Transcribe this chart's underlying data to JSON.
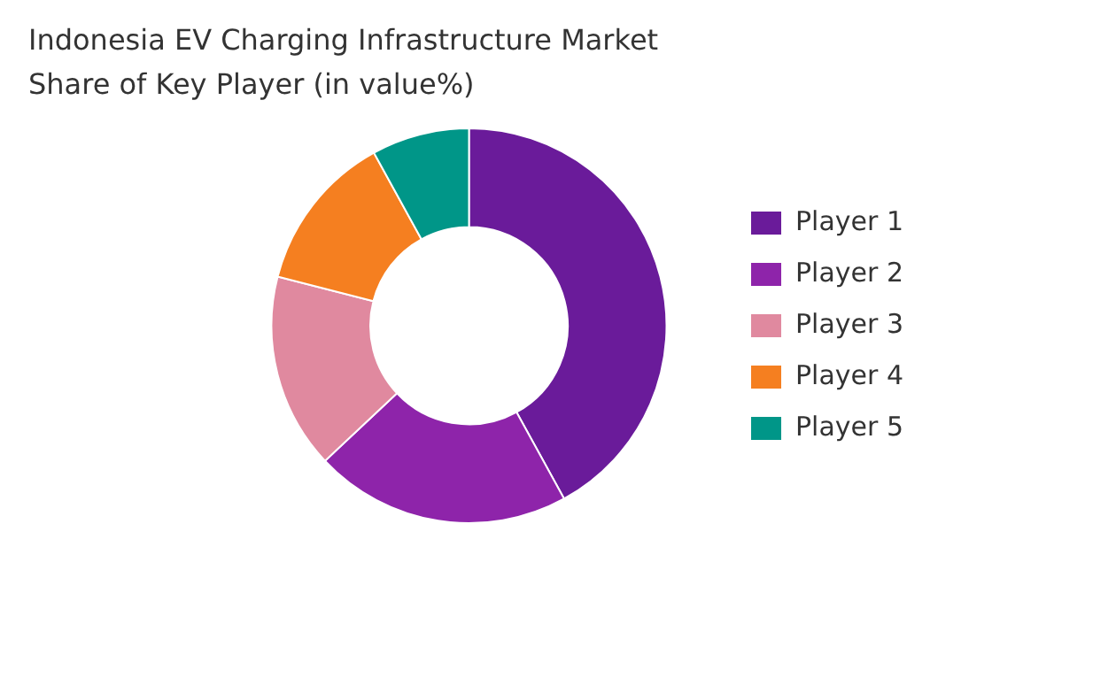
{
  "chart_data": {
    "type": "donut",
    "title": "Indonesia EV Charging Infrastructure Market Share of Key Player (in value%)",
    "categories": [
      "Player 1",
      "Player 2",
      "Player 3",
      "Player 4",
      "Player 5"
    ],
    "values": [
      42,
      21,
      16,
      13,
      8
    ],
    "colors": [
      "#6a1b9a",
      "#8e24aa",
      "#e0899f",
      "#f57f20",
      "#009688"
    ],
    "legend": "right"
  }
}
